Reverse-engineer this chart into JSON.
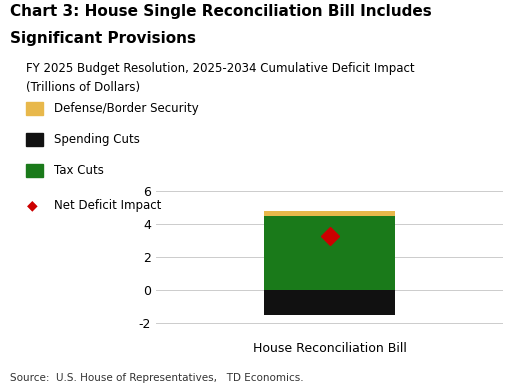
{
  "title_line1": "Chart 3: House Single Reconciliation Bill Includes",
  "title_line2": "Significant Provisions",
  "subtitle_line1": "FY 2025 Budget Resolution, 2025-2034 Cumulative Deficit Impact",
  "subtitle_line2": "(Trillions of Dollars)",
  "xlabel": "House Reconciliation Bill",
  "source": "Source:  U.S. House of Representatives,   TD Economics.",
  "defense_border": 0.3,
  "tax_cuts": 4.5,
  "spending_cuts": -1.5,
  "net_deficit": 3.3,
  "bar_width": 0.45,
  "ylim": [
    -2.8,
    7.0
  ],
  "yticks": [
    -2,
    0,
    2,
    4,
    6
  ],
  "colors": {
    "defense": "#E8B84B",
    "tax_cuts": "#1a7a1a",
    "spending_cuts": "#111111",
    "net_deficit": "#cc0000"
  },
  "legend": [
    {
      "label": "Defense/Border Security",
      "color": "#E8B84B",
      "type": "rect"
    },
    {
      "label": "Spending Cuts",
      "color": "#111111",
      "type": "rect"
    },
    {
      "label": "Tax Cuts",
      "color": "#1a7a1a",
      "type": "rect"
    },
    {
      "label": "Net Deficit Impact",
      "color": "#cc0000",
      "type": "diamond"
    }
  ],
  "title_fontsize": 11,
  "subtitle_fontsize": 8.5,
  "axis_fontsize": 9,
  "legend_fontsize": 8.5,
  "source_fontsize": 7.5
}
